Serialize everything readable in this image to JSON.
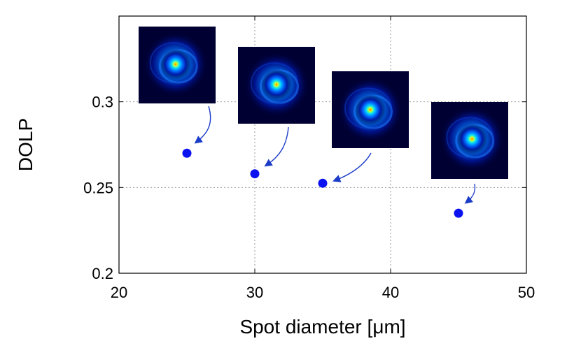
{
  "chart_data": {
    "type": "scatter",
    "title": "",
    "xlabel": "Spot diameter [μm]",
    "ylabel": "DOLP",
    "xlim": [
      20,
      50
    ],
    "ylim": [
      0.2,
      0.35
    ],
    "xticks": [
      20,
      30,
      40,
      50
    ],
    "yticks": [
      0.2,
      0.25,
      0.3
    ],
    "xtick_labels": [
      "20",
      "30",
      "40",
      "50"
    ],
    "ytick_labels": [
      "0.2",
      "0.25",
      "0.3"
    ],
    "grid": true,
    "marker_color": "#0a12f0",
    "arrow_color": "#1a3cc8",
    "points": [
      {
        "x": 25,
        "y": 0.27
      },
      {
        "x": 30,
        "y": 0.258
      },
      {
        "x": 35,
        "y": 0.2525
      },
      {
        "x": 45,
        "y": 0.235
      }
    ],
    "insets": [
      {
        "description": "beam-spot-image",
        "for_x": 25
      },
      {
        "description": "beam-spot-image",
        "for_x": 30
      },
      {
        "description": "beam-spot-image",
        "for_x": 35
      },
      {
        "description": "beam-spot-image",
        "for_x": 45
      }
    ]
  }
}
